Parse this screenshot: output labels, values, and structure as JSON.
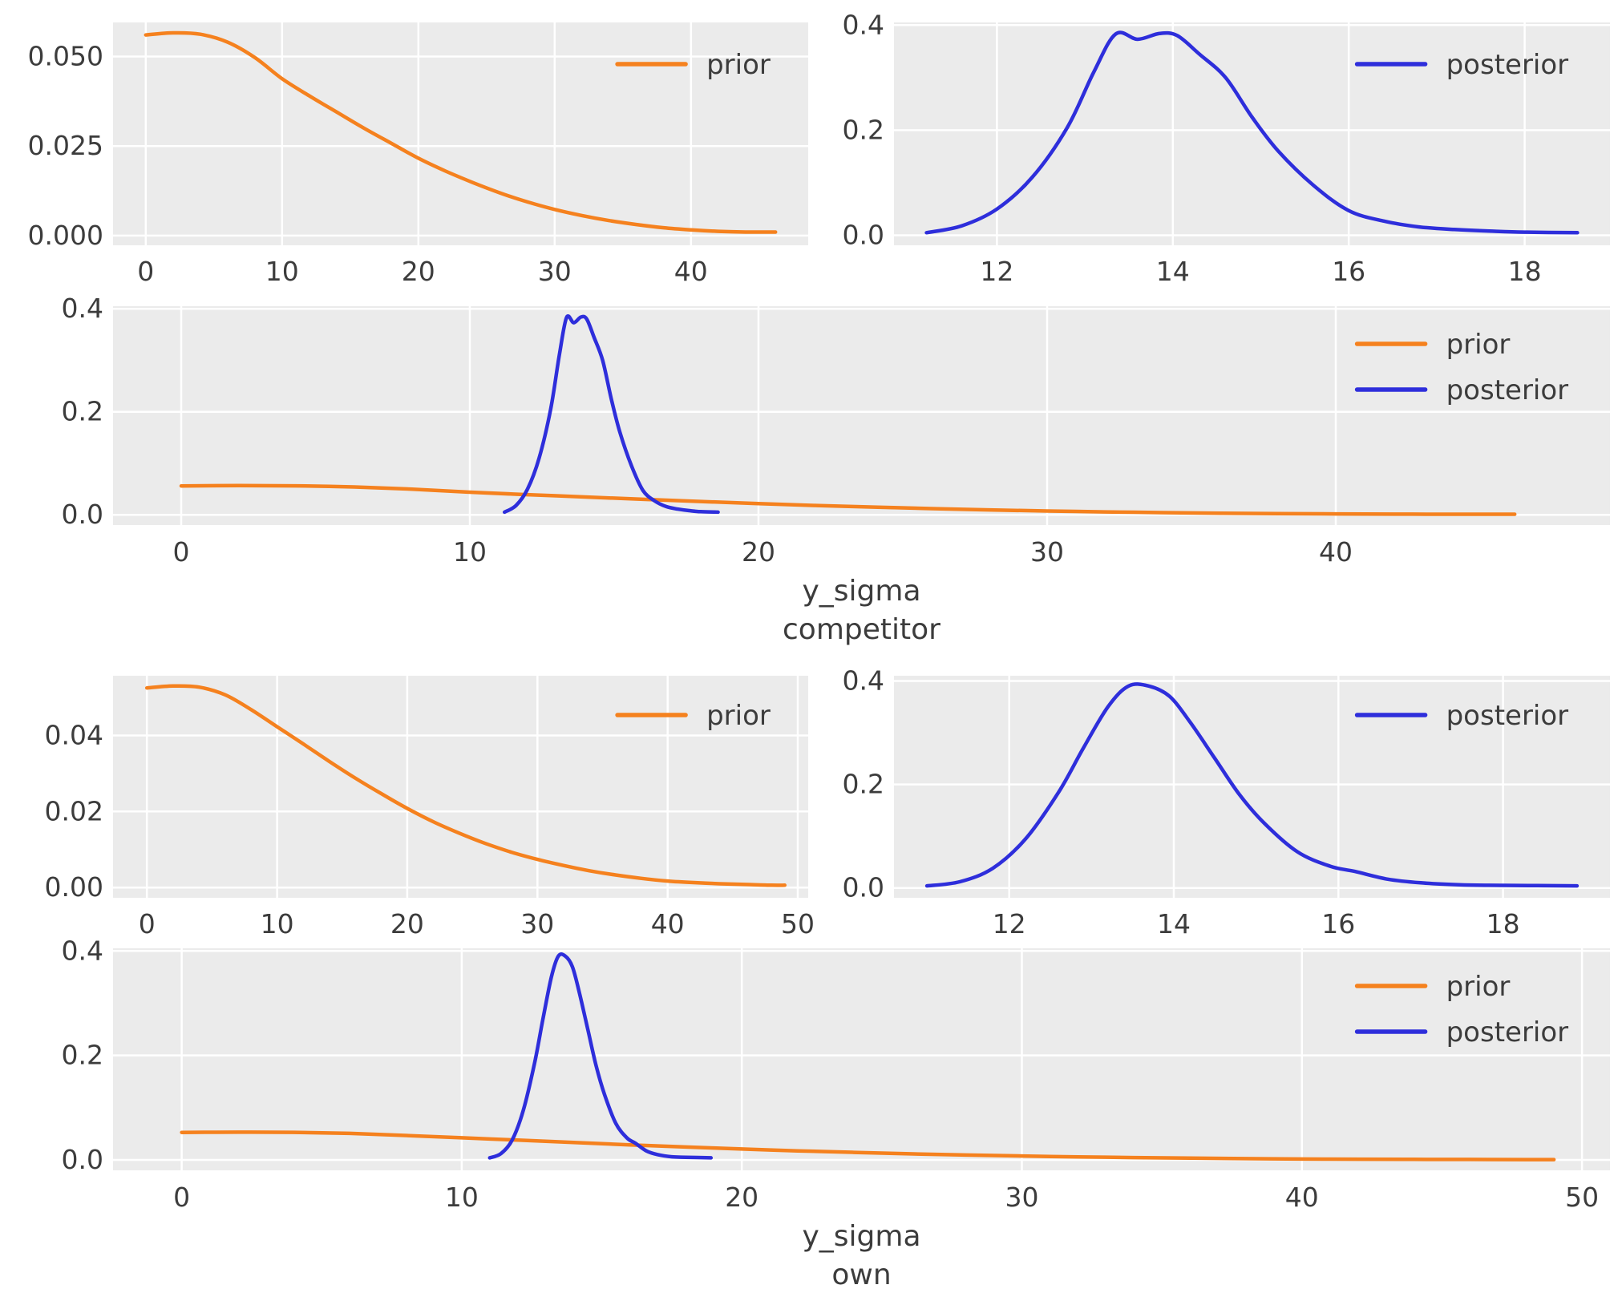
{
  "figure": {
    "background": "#ffffff",
    "panel_background": "#ebebeb",
    "grid_color": "#ffffff",
    "text_color": "#3c3c3c"
  },
  "colors": {
    "prior": "#f5811e",
    "posterior": "#2e2edb"
  },
  "distributions": {
    "competitor": {
      "prior": {
        "x": [
          0,
          2,
          4,
          6,
          8,
          10,
          12,
          14,
          16,
          18,
          20,
          22,
          24,
          26,
          28,
          30,
          32,
          34,
          36,
          38,
          40,
          42,
          44,
          46.2
        ],
        "y": [
          0.056,
          0.0566,
          0.0562,
          0.054,
          0.0497,
          0.0438,
          0.039,
          0.0345,
          0.03,
          0.0258,
          0.0216,
          0.018,
          0.0148,
          0.0119,
          0.0094,
          0.0073,
          0.0056,
          0.0042,
          0.0031,
          0.0022,
          0.0016,
          0.0012,
          0.001,
          0.001
        ]
      },
      "posterior": {
        "x": [
          11.2,
          11.6,
          12.0,
          12.4,
          12.8,
          13.1,
          13.35,
          13.6,
          13.85,
          14.05,
          14.3,
          14.6,
          14.9,
          15.2,
          15.6,
          16.0,
          16.4,
          16.8,
          17.2,
          17.6,
          18.0,
          18.6
        ],
        "y": [
          0.005,
          0.018,
          0.05,
          0.11,
          0.205,
          0.31,
          0.383,
          0.373,
          0.384,
          0.38,
          0.345,
          0.3,
          0.225,
          0.16,
          0.095,
          0.047,
          0.027,
          0.016,
          0.011,
          0.008,
          0.006,
          0.005
        ]
      }
    },
    "own": {
      "prior": {
        "x": [
          0,
          2,
          4,
          6,
          8,
          10,
          12,
          14,
          16,
          18,
          20,
          22,
          24,
          26,
          28,
          30,
          32,
          34,
          36,
          38,
          40,
          42,
          44,
          46,
          48,
          49
        ],
        "y": [
          0.0525,
          0.053,
          0.0527,
          0.0507,
          0.0468,
          0.0423,
          0.0378,
          0.0332,
          0.0288,
          0.0247,
          0.0208,
          0.0173,
          0.0143,
          0.0116,
          0.0093,
          0.0074,
          0.0058,
          0.0044,
          0.0033,
          0.0024,
          0.0017,
          0.0013,
          0.001,
          0.0008,
          0.0006,
          0.0006
        ]
      },
      "posterior": {
        "x": [
          11.0,
          11.4,
          11.8,
          12.2,
          12.6,
          12.9,
          13.2,
          13.45,
          13.7,
          13.95,
          14.2,
          14.5,
          14.8,
          15.1,
          15.5,
          15.9,
          16.2,
          16.6,
          17.0,
          17.5,
          18.0,
          18.9
        ],
        "y": [
          0.004,
          0.012,
          0.038,
          0.095,
          0.185,
          0.27,
          0.35,
          0.39,
          0.39,
          0.37,
          0.32,
          0.25,
          0.18,
          0.125,
          0.07,
          0.042,
          0.032,
          0.017,
          0.01,
          0.006,
          0.005,
          0.004
        ]
      }
    }
  },
  "chart_data": [
    {
      "id": "competitor-prior",
      "type": "line",
      "title": "",
      "xlabel": [],
      "ylabel": "",
      "grid": true,
      "legend_position": "upper right",
      "xlim": [
        -2.4,
        48.6
      ],
      "ylim": [
        -0.0027,
        0.0595
      ],
      "xticks": [
        {
          "v": 0,
          "label": "0"
        },
        {
          "v": 10,
          "label": "10"
        },
        {
          "v": 20,
          "label": "20"
        },
        {
          "v": 30,
          "label": "30"
        },
        {
          "v": 40,
          "label": "40"
        }
      ],
      "yticks": [
        {
          "v": 0,
          "label": "0.000"
        },
        {
          "v": 0.025,
          "label": "0.025"
        },
        {
          "v": 0.05,
          "label": "0.050"
        }
      ],
      "legend": [
        "prior"
      ],
      "series": [
        {
          "label": "prior",
          "data": "competitor.prior"
        }
      ]
    },
    {
      "id": "competitor-posterior",
      "type": "line",
      "title": "",
      "xlabel": [],
      "ylabel": "",
      "grid": true,
      "legend_position": "upper right",
      "xlim": [
        10.83,
        18.97
      ],
      "ylim": [
        -0.019,
        0.405
      ],
      "xticks": [
        {
          "v": 12,
          "label": "12"
        },
        {
          "v": 14,
          "label": "14"
        },
        {
          "v": 16,
          "label": "16"
        },
        {
          "v": 18,
          "label": "18"
        }
      ],
      "yticks": [
        {
          "v": 0,
          "label": "0.0"
        },
        {
          "v": 0.2,
          "label": "0.2"
        },
        {
          "v": 0.4,
          "label": "0.4"
        }
      ],
      "legend": [
        "posterior"
      ],
      "series": [
        {
          "label": "posterior",
          "data": "competitor.posterior"
        }
      ]
    },
    {
      "id": "competitor-joint",
      "type": "line",
      "title": "",
      "xlabel": [
        "y_sigma",
        "competitor"
      ],
      "ylabel": "",
      "grid": true,
      "legend_position": "upper right",
      "xlim": [
        -2.36,
        49.5
      ],
      "ylim": [
        -0.02,
        0.405
      ],
      "xticks": [
        {
          "v": 0,
          "label": "0"
        },
        {
          "v": 10,
          "label": "10"
        },
        {
          "v": 20,
          "label": "20"
        },
        {
          "v": 30,
          "label": "30"
        },
        {
          "v": 40,
          "label": "40"
        }
      ],
      "yticks": [
        {
          "v": 0,
          "label": "0.0"
        },
        {
          "v": 0.2,
          "label": "0.2"
        },
        {
          "v": 0.4,
          "label": "0.4"
        }
      ],
      "legend": [
        "prior",
        "posterior"
      ],
      "series": [
        {
          "label": "prior",
          "data": "competitor.prior"
        },
        {
          "label": "posterior",
          "data": "competitor.posterior"
        }
      ]
    },
    {
      "id": "own-prior",
      "type": "line",
      "title": "",
      "xlabel": [],
      "ylabel": "",
      "grid": true,
      "legend_position": "upper right",
      "xlim": [
        -2.6,
        50.8
      ],
      "ylim": [
        -0.0027,
        0.0557
      ],
      "xticks": [
        {
          "v": 0,
          "label": "0"
        },
        {
          "v": 10,
          "label": "10"
        },
        {
          "v": 20,
          "label": "20"
        },
        {
          "v": 30,
          "label": "30"
        },
        {
          "v": 40,
          "label": "40"
        },
        {
          "v": 50,
          "label": "50"
        }
      ],
      "yticks": [
        {
          "v": 0,
          "label": "0.00"
        },
        {
          "v": 0.02,
          "label": "0.02"
        },
        {
          "v": 0.04,
          "label": "0.04"
        }
      ],
      "legend": [
        "prior"
      ],
      "series": [
        {
          "label": "prior",
          "data": "own.prior"
        }
      ]
    },
    {
      "id": "own-posterior",
      "type": "line",
      "title": "",
      "xlabel": [],
      "ylabel": "",
      "grid": true,
      "legend_position": "upper right",
      "xlim": [
        10.6,
        19.3
      ],
      "ylim": [
        -0.019,
        0.41
      ],
      "xticks": [
        {
          "v": 12,
          "label": "12"
        },
        {
          "v": 14,
          "label": "14"
        },
        {
          "v": 16,
          "label": "16"
        },
        {
          "v": 18,
          "label": "18"
        }
      ],
      "yticks": [
        {
          "v": 0,
          "label": "0.0"
        },
        {
          "v": 0.2,
          "label": "0.2"
        },
        {
          "v": 0.4,
          "label": "0.4"
        }
      ],
      "legend": [
        "posterior"
      ],
      "series": [
        {
          "label": "posterior",
          "data": "own.posterior"
        }
      ]
    },
    {
      "id": "own-joint",
      "type": "line",
      "title": "",
      "xlabel": [
        "y_sigma",
        "own"
      ],
      "ylabel": "",
      "grid": true,
      "legend_position": "upper right",
      "xlim": [
        -2.45,
        51.0
      ],
      "ylim": [
        -0.02,
        0.405
      ],
      "xticks": [
        {
          "v": 0,
          "label": "0"
        },
        {
          "v": 10,
          "label": "10"
        },
        {
          "v": 20,
          "label": "20"
        },
        {
          "v": 30,
          "label": "30"
        },
        {
          "v": 40,
          "label": "40"
        },
        {
          "v": 50,
          "label": "50"
        }
      ],
      "yticks": [
        {
          "v": 0,
          "label": "0.0"
        },
        {
          "v": 0.2,
          "label": "0.2"
        },
        {
          "v": 0.4,
          "label": "0.4"
        }
      ],
      "legend": [
        "prior",
        "posterior"
      ],
      "series": [
        {
          "label": "prior",
          "data": "own.prior"
        },
        {
          "label": "posterior",
          "data": "own.posterior"
        }
      ]
    }
  ]
}
